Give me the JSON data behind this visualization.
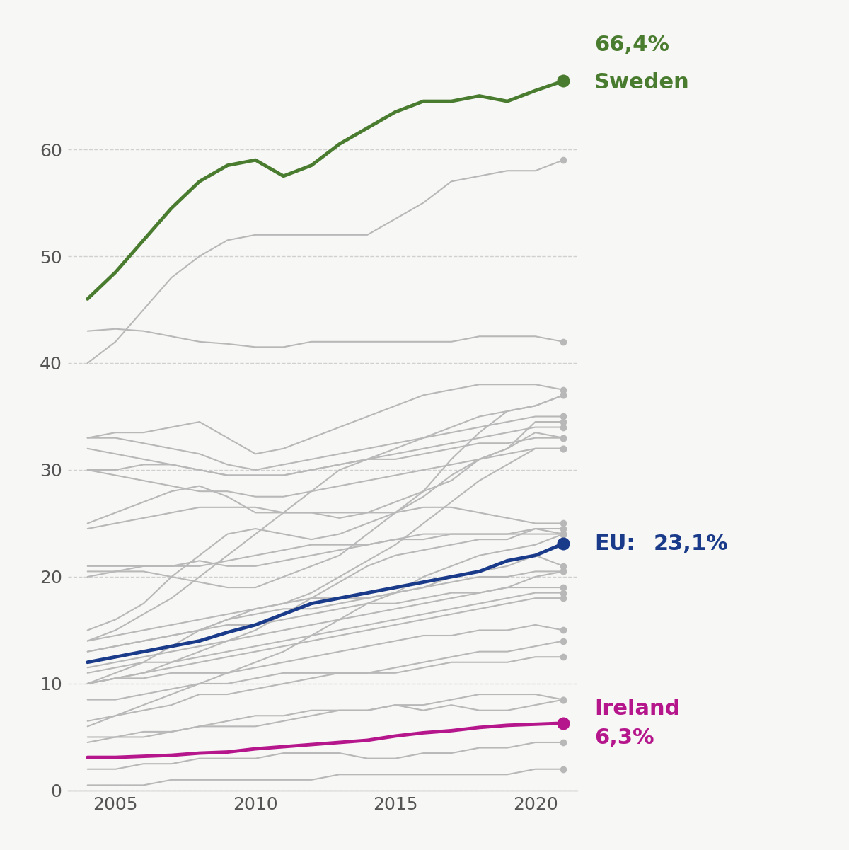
{
  "years": [
    2004,
    2005,
    2006,
    2007,
    2008,
    2009,
    2010,
    2011,
    2012,
    2013,
    2014,
    2015,
    2016,
    2017,
    2018,
    2019,
    2020,
    2021
  ],
  "sweden": [
    46.0,
    48.5,
    51.5,
    54.5,
    57.0,
    58.5,
    59.0,
    57.5,
    58.5,
    60.5,
    62.0,
    63.5,
    64.5,
    64.5,
    65.0,
    64.5,
    65.5,
    66.4
  ],
  "ireland": [
    3.1,
    3.1,
    3.2,
    3.3,
    3.5,
    3.6,
    3.9,
    4.1,
    4.3,
    4.5,
    4.7,
    5.1,
    5.4,
    5.6,
    5.9,
    6.1,
    6.2,
    6.3
  ],
  "eu_avg": [
    12.0,
    12.5,
    13.0,
    13.5,
    14.0,
    14.8,
    15.5,
    16.5,
    17.5,
    18.0,
    18.5,
    19.0,
    19.5,
    20.0,
    20.5,
    21.5,
    22.0,
    23.1
  ],
  "other_countries": [
    [
      43.0,
      43.2,
      43.0,
      42.5,
      42.0,
      41.8,
      41.5,
      41.5,
      42.0,
      42.0,
      42.0,
      42.0,
      42.0,
      42.0,
      42.5,
      42.5,
      42.5,
      42.0
    ],
    [
      40.0,
      42.0,
      45.0,
      48.0,
      50.0,
      51.5,
      52.0,
      52.0,
      52.0,
      52.0,
      52.0,
      53.5,
      55.0,
      57.0,
      57.5,
      58.0,
      58.0,
      59.0
    ],
    [
      33.0,
      33.5,
      33.5,
      34.0,
      34.5,
      33.0,
      31.5,
      32.0,
      33.0,
      34.0,
      35.0,
      36.0,
      37.0,
      37.5,
      38.0,
      38.0,
      38.0,
      37.5
    ],
    [
      33.0,
      33.0,
      32.5,
      32.0,
      31.5,
      30.5,
      30.0,
      30.5,
      31.0,
      31.5,
      32.0,
      32.5,
      33.0,
      33.5,
      34.0,
      34.5,
      35.0,
      35.0
    ],
    [
      32.0,
      31.5,
      31.0,
      30.5,
      30.0,
      29.5,
      29.5,
      29.5,
      30.0,
      30.5,
      31.0,
      31.5,
      32.0,
      32.5,
      33.0,
      33.5,
      34.0,
      34.0
    ],
    [
      30.0,
      30.0,
      30.5,
      30.5,
      30.0,
      29.5,
      29.5,
      29.5,
      30.0,
      30.5,
      31.0,
      31.0,
      31.5,
      32.0,
      32.5,
      32.5,
      33.0,
      33.0
    ],
    [
      30.0,
      29.5,
      29.0,
      28.5,
      28.0,
      28.0,
      27.5,
      27.5,
      28.0,
      28.5,
      29.0,
      29.5,
      30.0,
      30.5,
      31.0,
      31.5,
      32.0,
      32.0
    ],
    [
      25.0,
      26.0,
      27.0,
      28.0,
      28.5,
      27.5,
      26.0,
      26.0,
      26.0,
      25.5,
      26.0,
      27.0,
      28.0,
      29.0,
      31.0,
      32.0,
      34.5,
      34.5
    ],
    [
      20.5,
      20.5,
      20.5,
      20.0,
      19.5,
      19.0,
      19.0,
      20.0,
      21.0,
      22.0,
      24.0,
      26.0,
      28.0,
      31.0,
      33.5,
      35.5,
      36.0,
      37.0
    ],
    [
      15.0,
      16.0,
      17.5,
      20.0,
      22.0,
      24.0,
      24.5,
      24.0,
      23.5,
      24.0,
      25.0,
      26.0,
      27.5,
      29.5,
      31.0,
      32.0,
      33.5,
      33.0
    ],
    [
      14.0,
      15.0,
      16.5,
      18.0,
      20.0,
      22.0,
      24.0,
      26.0,
      28.0,
      30.0,
      31.0,
      32.0,
      33.0,
      34.0,
      35.0,
      35.5,
      36.0,
      37.0
    ],
    [
      14.0,
      14.5,
      15.0,
      15.5,
      16.0,
      16.5,
      17.0,
      17.5,
      18.5,
      20.0,
      21.5,
      23.0,
      25.0,
      27.0,
      29.0,
      30.5,
      32.0,
      32.0
    ],
    [
      24.5,
      25.0,
      25.5,
      26.0,
      26.5,
      26.5,
      26.5,
      26.0,
      26.0,
      26.0,
      26.0,
      26.0,
      26.5,
      26.5,
      26.0,
      25.5,
      25.0,
      25.0
    ],
    [
      21.0,
      21.0,
      21.0,
      21.0,
      21.5,
      21.0,
      21.0,
      21.5,
      22.0,
      22.5,
      23.0,
      23.5,
      24.0,
      24.0,
      24.0,
      24.0,
      24.5,
      24.5
    ],
    [
      20.0,
      20.5,
      21.0,
      21.0,
      21.0,
      21.5,
      22.0,
      22.5,
      23.0,
      23.0,
      23.0,
      23.5,
      23.5,
      24.0,
      24.0,
      24.0,
      24.0,
      24.0
    ],
    [
      10.0,
      10.5,
      11.0,
      12.0,
      13.0,
      14.0,
      15.0,
      16.5,
      18.0,
      19.5,
      21.0,
      22.0,
      22.5,
      23.0,
      23.5,
      23.5,
      24.5,
      24.0
    ],
    [
      13.0,
      13.5,
      14.0,
      14.5,
      15.0,
      16.0,
      17.0,
      17.5,
      18.0,
      18.0,
      18.0,
      18.5,
      19.0,
      20.0,
      20.5,
      21.0,
      22.0,
      21.0
    ],
    [
      6.0,
      7.0,
      8.0,
      9.0,
      10.0,
      11.0,
      12.0,
      13.0,
      14.5,
      16.0,
      17.5,
      18.5,
      20.0,
      21.0,
      22.0,
      22.5,
      23.0,
      24.0
    ],
    [
      11.5,
      12.0,
      12.5,
      13.0,
      13.5,
      14.0,
      14.5,
      15.0,
      15.5,
      16.0,
      16.5,
      17.0,
      17.5,
      18.0,
      18.5,
      19.0,
      20.0,
      20.5
    ],
    [
      10.0,
      11.0,
      12.0,
      13.5,
      15.0,
      16.0,
      16.5,
      17.0,
      17.0,
      17.5,
      18.0,
      18.5,
      19.0,
      19.5,
      20.0,
      20.0,
      20.5,
      20.5
    ],
    [
      13.0,
      13.5,
      14.0,
      14.5,
      15.0,
      15.5,
      15.5,
      16.0,
      16.5,
      17.0,
      17.5,
      17.5,
      18.0,
      18.5,
      18.5,
      19.0,
      19.0,
      19.0
    ],
    [
      11.0,
      11.5,
      12.0,
      12.0,
      12.5,
      13.0,
      13.5,
      14.0,
      14.5,
      15.0,
      15.5,
      16.0,
      16.5,
      17.0,
      17.5,
      18.0,
      18.5,
      18.5
    ],
    [
      10.0,
      10.5,
      11.0,
      11.5,
      12.0,
      12.5,
      13.0,
      13.5,
      14.0,
      14.5,
      15.0,
      15.5,
      16.0,
      16.5,
      17.0,
      17.5,
      18.0,
      18.0
    ],
    [
      10.0,
      10.5,
      10.5,
      11.0,
      11.0,
      11.0,
      11.5,
      12.0,
      12.5,
      13.0,
      13.5,
      14.0,
      14.5,
      14.5,
      15.0,
      15.0,
      15.5,
      15.0
    ],
    [
      6.5,
      7.0,
      7.5,
      8.0,
      9.0,
      9.0,
      9.5,
      10.0,
      10.5,
      11.0,
      11.0,
      11.5,
      12.0,
      12.5,
      13.0,
      13.0,
      13.5,
      14.0
    ],
    [
      8.5,
      8.5,
      9.0,
      9.5,
      10.0,
      10.0,
      10.5,
      11.0,
      11.0,
      11.0,
      11.0,
      11.0,
      11.5,
      12.0,
      12.0,
      12.0,
      12.5,
      12.5
    ],
    [
      5.0,
      5.0,
      5.5,
      5.5,
      6.0,
      6.0,
      6.0,
      6.5,
      7.0,
      7.5,
      7.5,
      8.0,
      8.0,
      8.5,
      9.0,
      9.0,
      9.0,
      8.5
    ],
    [
      4.5,
      5.0,
      5.0,
      5.5,
      6.0,
      6.5,
      7.0,
      7.0,
      7.5,
      7.5,
      7.5,
      8.0,
      7.5,
      8.0,
      7.5,
      7.5,
      8.0,
      8.5
    ],
    [
      2.0,
      2.0,
      2.5,
      2.5,
      3.0,
      3.0,
      3.0,
      3.5,
      3.5,
      3.5,
      3.0,
      3.0,
      3.5,
      3.5,
      4.0,
      4.0,
      4.5,
      4.5
    ],
    [
      0.5,
      0.5,
      0.5,
      1.0,
      1.0,
      1.0,
      1.0,
      1.0,
      1.0,
      1.5,
      1.5,
      1.5,
      1.5,
      1.5,
      1.5,
      1.5,
      2.0,
      2.0
    ]
  ],
  "sweden_color": "#4a7c2f",
  "ireland_color": "#b5168c",
  "eu_color": "#1a3a8a",
  "other_color": "#b8b8b8",
  "bg_color": "#f7f7f5",
  "grid_color": "#cccccc",
  "ylim": [
    0,
    70
  ],
  "yticks": [
    0,
    10,
    20,
    30,
    40,
    50,
    60
  ],
  "xlim": [
    2003.3,
    2021.5
  ],
  "xticks": [
    2005,
    2010,
    2015,
    2020
  ],
  "tick_fontsize": 18,
  "label_fontsize_large": 22,
  "label_fontsize_small": 20
}
